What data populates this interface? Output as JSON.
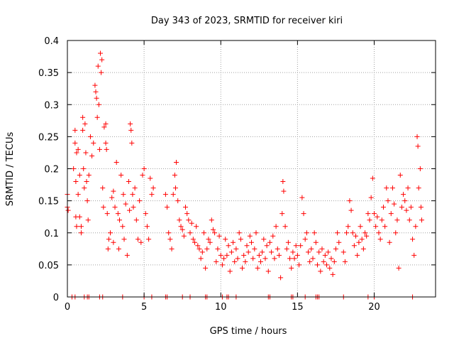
{
  "chart_data": {
    "type": "scatter",
    "title": "Day 343 of 2023, SRMTID for receiver kiri",
    "xlabel": "GPS time / hours",
    "ylabel": "SRMTID / TECUs",
    "xlim": [
      0,
      24
    ],
    "ylim": [
      0,
      0.4
    ],
    "xticks": [
      0,
      5,
      10,
      15,
      20
    ],
    "xtick_labels": [
      "0",
      "5",
      "10",
      "15",
      "20"
    ],
    "yticks": [
      0,
      0.05,
      0.1,
      0.15,
      0.2,
      0.25,
      0.3,
      0.35,
      0.4
    ],
    "ytick_labels": [
      "0",
      "0.05",
      "0.1",
      "0.15",
      "0.2",
      "0.25",
      "0.3",
      "0.35",
      "0.4"
    ],
    "grid": true,
    "marker": "+",
    "color": "#ff0000",
    "series": [
      {
        "name": "SRMTID",
        "points": [
          [
            0.0,
            0.14
          ],
          [
            0.0,
            0.16
          ],
          [
            0.05,
            0.135
          ],
          [
            0.4,
            0.2
          ],
          [
            0.5,
            0.24
          ],
          [
            0.5,
            0.26
          ],
          [
            0.55,
            0.18
          ],
          [
            0.55,
            0.125
          ],
          [
            0.6,
            0.225
          ],
          [
            0.6,
            0.11
          ],
          [
            0.7,
            0.23
          ],
          [
            0.7,
            0.16
          ],
          [
            0.8,
            0.19
          ],
          [
            0.8,
            0.125
          ],
          [
            0.9,
            0.11
          ],
          [
            0.9,
            0.1
          ],
          [
            1.0,
            0.28
          ],
          [
            1.0,
            0.26
          ],
          [
            1.05,
            0.2
          ],
          [
            1.1,
            0.17
          ],
          [
            1.15,
            0.27
          ],
          [
            1.2,
            0.225
          ],
          [
            1.25,
            0.18
          ],
          [
            1.3,
            0.15
          ],
          [
            1.35,
            0.12
          ],
          [
            1.4,
            0.19
          ],
          [
            1.5,
            0.25
          ],
          [
            1.6,
            0.22
          ],
          [
            1.7,
            0.24
          ],
          [
            1.8,
            0.33
          ],
          [
            1.85,
            0.32
          ],
          [
            1.9,
            0.31
          ],
          [
            1.95,
            0.28
          ],
          [
            2.0,
            0.36
          ],
          [
            2.05,
            0.3
          ],
          [
            2.1,
            0.23
          ],
          [
            2.15,
            0.38
          ],
          [
            2.2,
            0.35
          ],
          [
            2.25,
            0.37
          ],
          [
            2.3,
            0.17
          ],
          [
            2.35,
            0.14
          ],
          [
            2.4,
            0.265
          ],
          [
            2.5,
            0.24
          ],
          [
            2.5,
            0.27
          ],
          [
            2.55,
            0.23
          ],
          [
            2.6,
            0.13
          ],
          [
            2.65,
            0.075
          ],
          [
            2.7,
            0.09
          ],
          [
            2.8,
            0.1
          ],
          [
            2.9,
            0.155
          ],
          [
            3.0,
            0.165
          ],
          [
            3.0,
            0.085
          ],
          [
            3.1,
            0.14
          ],
          [
            3.2,
            0.21
          ],
          [
            3.3,
            0.13
          ],
          [
            3.35,
            0.075
          ],
          [
            3.4,
            0.12
          ],
          [
            3.5,
            0.19
          ],
          [
            3.6,
            0.11
          ],
          [
            3.65,
            0.16
          ],
          [
            3.7,
            0.09
          ],
          [
            3.8,
            0.145
          ],
          [
            3.9,
            0.065
          ],
          [
            4.0,
            0.18
          ],
          [
            4.05,
            0.135
          ],
          [
            4.1,
            0.27
          ],
          [
            4.15,
            0.26
          ],
          [
            4.2,
            0.24
          ],
          [
            4.25,
            0.16
          ],
          [
            4.3,
            0.14
          ],
          [
            4.4,
            0.17
          ],
          [
            4.5,
            0.12
          ],
          [
            4.6,
            0.09
          ],
          [
            4.7,
            0.15
          ],
          [
            4.8,
            0.085
          ],
          [
            4.9,
            0.19
          ],
          [
            5.0,
            0.2
          ],
          [
            5.1,
            0.13
          ],
          [
            5.2,
            0.11
          ],
          [
            5.3,
            0.09
          ],
          [
            5.4,
            0.185
          ],
          [
            5.5,
            0.16
          ],
          [
            5.6,
            0.17
          ],
          [
            6.4,
            0.16
          ],
          [
            6.5,
            0.14
          ],
          [
            6.6,
            0.1
          ],
          [
            6.7,
            0.09
          ],
          [
            6.8,
            0.075
          ],
          [
            6.9,
            0.16
          ],
          [
            7.0,
            0.19
          ],
          [
            7.05,
            0.17
          ],
          [
            7.1,
            0.21
          ],
          [
            7.2,
            0.15
          ],
          [
            7.3,
            0.12
          ],
          [
            7.4,
            0.11
          ],
          [
            7.5,
            0.105
          ],
          [
            7.6,
            0.095
          ],
          [
            7.7,
            0.14
          ],
          [
            7.8,
            0.13
          ],
          [
            7.9,
            0.12
          ],
          [
            8.0,
            0.1
          ],
          [
            8.1,
            0.115
          ],
          [
            8.2,
            0.09
          ],
          [
            8.3,
            0.085
          ],
          [
            8.4,
            0.11
          ],
          [
            8.5,
            0.08
          ],
          [
            8.6,
            0.075
          ],
          [
            8.7,
            0.06
          ],
          [
            8.8,
            0.07
          ],
          [
            8.9,
            0.1
          ],
          [
            9.0,
            0.045
          ],
          [
            9.1,
            0.075
          ],
          [
            9.2,
            0.09
          ],
          [
            9.3,
            0.085
          ],
          [
            9.4,
            0.12
          ],
          [
            9.5,
            0.105
          ],
          [
            9.6,
            0.1
          ],
          [
            9.7,
            0.055
          ],
          [
            9.8,
            0.075
          ],
          [
            9.9,
            0.095
          ],
          [
            10.0,
            0.065
          ],
          [
            10.1,
            0.05
          ],
          [
            10.2,
            0.06
          ],
          [
            10.3,
            0.09
          ],
          [
            10.4,
            0.065
          ],
          [
            10.5,
            0.08
          ],
          [
            10.6,
            0.04
          ],
          [
            10.7,
            0.07
          ],
          [
            10.8,
            0.085
          ],
          [
            10.9,
            0.055
          ],
          [
            11.0,
            0.075
          ],
          [
            11.1,
            0.06
          ],
          [
            11.2,
            0.1
          ],
          [
            11.3,
            0.09
          ],
          [
            11.4,
            0.045
          ],
          [
            11.5,
            0.065
          ],
          [
            11.6,
            0.055
          ],
          [
            11.7,
            0.08
          ],
          [
            11.8,
            0.07
          ],
          [
            11.9,
            0.095
          ],
          [
            12.0,
            0.085
          ],
          [
            12.1,
            0.06
          ],
          [
            12.2,
            0.075
          ],
          [
            12.3,
            0.1
          ],
          [
            12.4,
            0.045
          ],
          [
            12.5,
            0.065
          ],
          [
            12.6,
            0.055
          ],
          [
            12.7,
            0.07
          ],
          [
            12.8,
            0.09
          ],
          [
            12.9,
            0.06
          ],
          [
            13.0,
            0.08
          ],
          [
            13.1,
            0.04
          ],
          [
            13.2,
            0.085
          ],
          [
            13.3,
            0.07
          ],
          [
            13.4,
            0.095
          ],
          [
            13.5,
            0.06
          ],
          [
            13.6,
            0.11
          ],
          [
            13.7,
            0.075
          ],
          [
            13.8,
            0.065
          ],
          [
            13.9,
            0.03
          ],
          [
            14.0,
            0.13
          ],
          [
            14.05,
            0.18
          ],
          [
            14.1,
            0.165
          ],
          [
            14.2,
            0.11
          ],
          [
            14.3,
            0.075
          ],
          [
            14.4,
            0.085
          ],
          [
            14.5,
            0.06
          ],
          [
            14.6,
            0.045
          ],
          [
            14.7,
            0.07
          ],
          [
            14.8,
            0.06
          ],
          [
            14.9,
            0.08
          ],
          [
            15.0,
            0.065
          ],
          [
            15.1,
            0.05
          ],
          [
            15.2,
            0.08
          ],
          [
            15.3,
            0.155
          ],
          [
            15.4,
            0.13
          ],
          [
            15.5,
            0.09
          ],
          [
            15.6,
            0.1
          ],
          [
            15.7,
            0.07
          ],
          [
            15.8,
            0.055
          ],
          [
            15.9,
            0.075
          ],
          [
            16.0,
            0.06
          ],
          [
            16.1,
            0.1
          ],
          [
            16.2,
            0.085
          ],
          [
            16.3,
            0.05
          ],
          [
            16.4,
            0.07
          ],
          [
            16.5,
            0.04
          ],
          [
            16.6,
            0.075
          ],
          [
            16.7,
            0.055
          ],
          [
            16.8,
            0.065
          ],
          [
            16.9,
            0.05
          ],
          [
            17.0,
            0.07
          ],
          [
            17.1,
            0.045
          ],
          [
            17.2,
            0.06
          ],
          [
            17.3,
            0.035
          ],
          [
            17.4,
            0.055
          ],
          [
            17.5,
            0.075
          ],
          [
            17.6,
            0.1
          ],
          [
            17.7,
            0.085
          ],
          [
            18.0,
            0.07
          ],
          [
            18.1,
            0.055
          ],
          [
            18.2,
            0.1
          ],
          [
            18.3,
            0.11
          ],
          [
            18.4,
            0.15
          ],
          [
            18.5,
            0.135
          ],
          [
            18.6,
            0.1
          ],
          [
            18.7,
            0.08
          ],
          [
            18.8,
            0.095
          ],
          [
            18.9,
            0.065
          ],
          [
            19.0,
            0.085
          ],
          [
            19.1,
            0.11
          ],
          [
            19.2,
            0.09
          ],
          [
            19.3,
            0.075
          ],
          [
            19.4,
            0.1
          ],
          [
            19.5,
            0.095
          ],
          [
            19.6,
            0.13
          ],
          [
            19.7,
            0.12
          ],
          [
            19.8,
            0.155
          ],
          [
            19.9,
            0.185
          ],
          [
            20.0,
            0.13
          ],
          [
            20.1,
            0.11
          ],
          [
            20.2,
            0.125
          ],
          [
            20.3,
            0.1
          ],
          [
            20.4,
            0.09
          ],
          [
            20.5,
            0.12
          ],
          [
            20.6,
            0.14
          ],
          [
            20.7,
            0.11
          ],
          [
            20.8,
            0.17
          ],
          [
            20.9,
            0.15
          ],
          [
            21.0,
            0.085
          ],
          [
            21.1,
            0.13
          ],
          [
            21.2,
            0.17
          ],
          [
            21.3,
            0.145
          ],
          [
            21.4,
            0.1
          ],
          [
            21.5,
            0.12
          ],
          [
            21.6,
            0.045
          ],
          [
            21.7,
            0.19
          ],
          [
            21.8,
            0.14
          ],
          [
            21.9,
            0.16
          ],
          [
            22.0,
            0.15
          ],
          [
            22.1,
            0.135
          ],
          [
            22.2,
            0.17
          ],
          [
            22.3,
            0.12
          ],
          [
            22.4,
            0.14
          ],
          [
            22.5,
            0.09
          ],
          [
            22.6,
            0.065
          ],
          [
            22.7,
            0.11
          ],
          [
            22.8,
            0.25
          ],
          [
            22.85,
            0.235
          ],
          [
            22.9,
            0.17
          ],
          [
            23.0,
            0.2
          ],
          [
            23.05,
            0.14
          ],
          [
            23.1,
            0.12
          ]
        ]
      }
    ],
    "zero_points_x": [
      0.3,
      0.5,
      1.1,
      1.3,
      1.4,
      2.1,
      2.3,
      3.6,
      5.0,
      5.5,
      6.4,
      6.5,
      7.5,
      8.0,
      9.0,
      9.1,
      10.1,
      10.4,
      10.5,
      11.0,
      13.1,
      13.2,
      14.6,
      14.7,
      15.5,
      16.2,
      16.3,
      16.4,
      18.0,
      19.6,
      20.0,
      22.5
    ]
  }
}
